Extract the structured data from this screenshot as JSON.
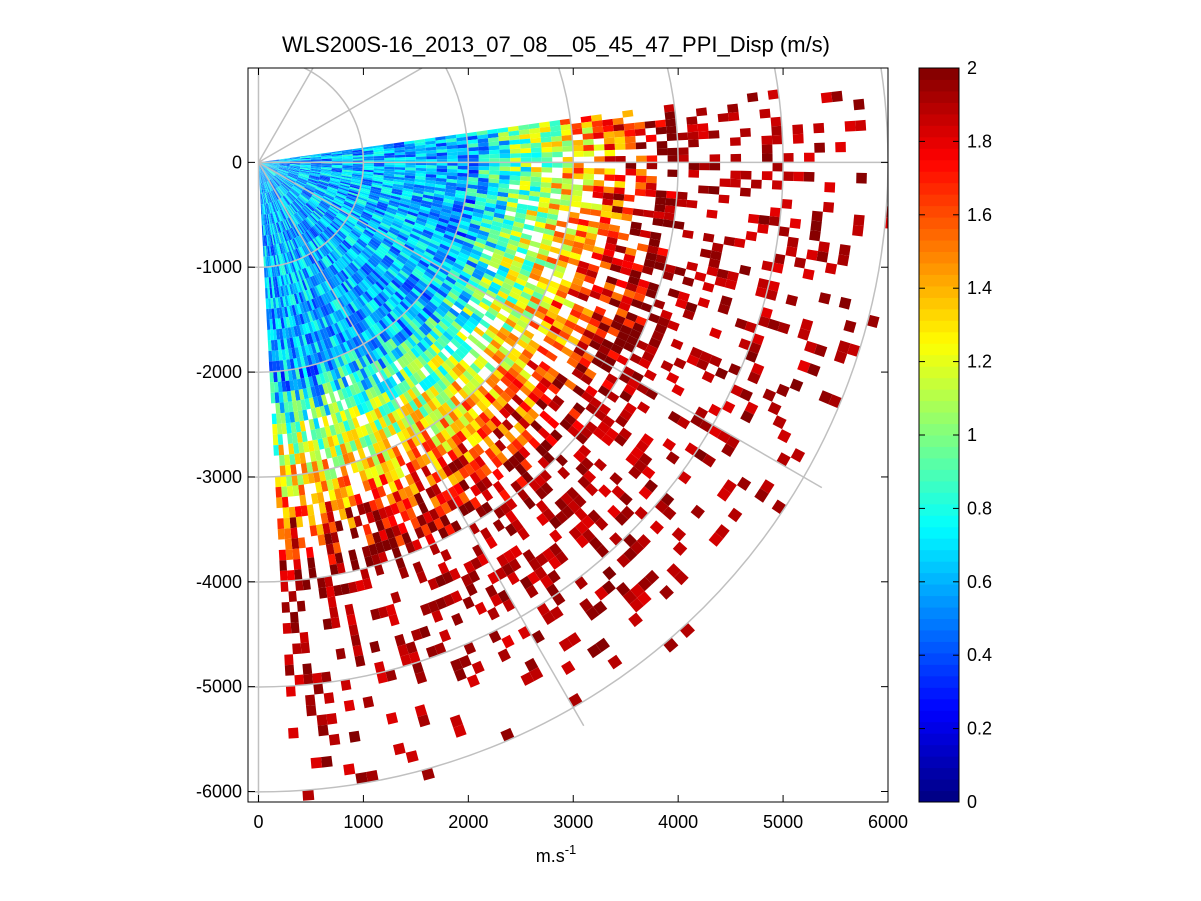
{
  "chart_data": {
    "type": "heatmap",
    "subtype": "polar-ppi",
    "title": "WLS200S-16_2013_07_08__05_45_47_PPI_Disp (m/s)",
    "xlabel_base": "m.s",
    "xlabel_exp": "-1",
    "ylabel": "",
    "xlim": [
      -100,
      6000
    ],
    "ylim": [
      -6100,
      900
    ],
    "x_ticks": [
      0,
      1000,
      2000,
      3000,
      4000,
      5000,
      6000
    ],
    "x_tick_labels": [
      "0",
      "1000",
      "2000",
      "3000",
      "4000",
      "5000",
      "6000"
    ],
    "y_ticks": [
      0,
      -1000,
      -2000,
      -3000,
      -4000,
      -5000,
      -6000
    ],
    "y_tick_labels": [
      "0",
      "-1000",
      "-2000",
      "-3000",
      "-4000",
      "-5000",
      "-6000"
    ],
    "polar_grid": {
      "range_rings_m": [
        1000,
        2000,
        3000,
        4000,
        5000,
        6000
      ],
      "radial_spokes_deg": [
        90,
        60,
        30,
        0,
        -30,
        -60,
        -90
      ]
    },
    "scan": {
      "azimuth_start_deg": 8,
      "azimuth_end_deg": -87,
      "gate_spacing_m": 100,
      "ray_spacing_deg": 1
    },
    "colorbar": {
      "colormap": "jet",
      "clim": [
        0,
        2
      ],
      "ticks": [
        0,
        0.2,
        0.4,
        0.6,
        0.8,
        1,
        1.2,
        1.4,
        1.6,
        1.8,
        2
      ],
      "tick_labels": [
        "0",
        "0.2",
        "0.4",
        "0.6",
        "0.8",
        "1",
        "1.2",
        "1.4",
        "1.6",
        "1.8",
        "2"
      ]
    },
    "field_description": {
      "near_range_value": 0.6,
      "transition_start_m": 2000,
      "saturation_range_m": 4000,
      "edge_range_m": 6100
    }
  }
}
